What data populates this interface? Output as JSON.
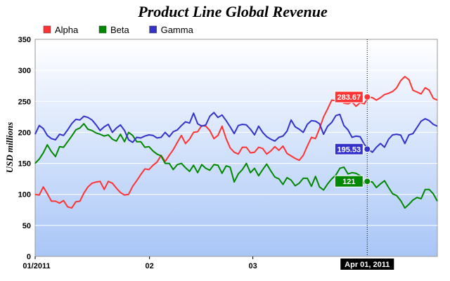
{
  "chart_data": {
    "type": "line",
    "title": "Product Line Global Revenue",
    "ylabel": "USD millions",
    "xlabel": "",
    "ylim": [
      0,
      350
    ],
    "yticks": [
      0,
      50,
      100,
      150,
      200,
      250,
      300,
      350
    ],
    "x_tick_labels": [
      "01/2011",
      "02",
      "03"
    ],
    "x_tick_days": [
      0,
      31,
      59
    ],
    "x_days_total": 109,
    "crosshair": {
      "label": "Apr 01, 2011",
      "day": 90
    },
    "legend_position": "top-left",
    "grid": "horizontal",
    "background_gradient": [
      "#ffffff",
      "#a9c6f7"
    ],
    "series": [
      {
        "name": "Alpha",
        "color": "#ff3333",
        "crosshair_value": "283.67",
        "values": [
          100,
          99,
          112,
          101,
          89,
          89,
          86,
          90,
          80,
          78,
          88,
          89,
          102,
          112,
          118,
          120,
          121,
          108,
          121,
          118,
          110,
          103,
          99,
          100,
          113,
          122,
          132,
          141,
          140,
          147,
          152,
          163,
          153,
          163,
          172,
          184,
          195,
          182,
          189,
          200,
          201,
          211,
          210,
          203,
          190,
          195,
          210,
          190,
          175,
          168,
          165,
          176,
          176,
          167,
          168,
          176,
          174,
          165,
          170,
          177,
          171,
          178,
          166,
          162,
          158,
          155,
          163,
          178,
          192,
          190,
          206,
          225,
          238,
          252,
          251,
          253,
          247,
          246,
          249,
          242,
          248,
          246,
          257,
          256,
          252,
          256,
          261,
          263,
          266,
          272,
          283.67,
          290,
          285,
          268,
          265,
          262,
          272,
          268,
          255,
          252
        ]
      },
      {
        "name": "Beta",
        "color": "#008800",
        "values": [
          150,
          157,
          167,
          180,
          169,
          161,
          177,
          176,
          185,
          194,
          204,
          207,
          214,
          205,
          203,
          199,
          197,
          194,
          196,
          189,
          186,
          197,
          185,
          200,
          195,
          185,
          185,
          176,
          177,
          170,
          165,
          162,
          150,
          150,
          140,
          148,
          150,
          143,
          137,
          147,
          135,
          148,
          142,
          139,
          148,
          147,
          134,
          146,
          144,
          120,
          133,
          140,
          150,
          135,
          142,
          130,
          140,
          149,
          138,
          128,
          125,
          116,
          127,
          123,
          114,
          118,
          126,
          126,
          113,
          129,
          112,
          107,
          117,
          125,
          131,
          142,
          144,
          133,
          135,
          134,
          130,
          118,
          121,
          120,
          111,
          117,
          122,
          111,
          101,
          98,
          89.876,
          78,
          84,
          91,
          95,
          93,
          108,
          108,
          101,
          89
        ]
      },
      {
        "name": "Gamma",
        "color": "#3333cc",
        "crosshair_value": "195.53",
        "values": [
          197,
          211,
          206,
          195,
          190,
          188,
          197,
          195,
          204,
          214,
          221,
          220,
          226,
          224,
          220,
          212,
          203,
          209,
          213,
          200,
          207,
          212,
          203,
          188,
          184,
          192,
          191,
          194,
          196,
          195,
          191,
          192,
          200,
          193,
          201,
          204,
          211,
          217,
          215,
          231,
          214,
          210,
          212,
          226,
          232,
          224,
          228,
          219,
          209,
          198,
          211,
          213,
          212,
          205,
          196,
          210,
          200,
          193,
          189,
          186,
          192,
          194,
          202,
          220,
          209,
          205,
          200,
          213,
          219,
          218,
          214,
          197,
          210,
          216,
          227,
          229,
          211,
          204,
          192,
          194,
          193,
          181,
          173,
          168,
          176,
          182,
          176,
          189,
          196,
          197,
          195.53,
          182,
          196,
          198,
          208,
          218,
          222,
          219,
          213,
          210
        ]
      }
    ]
  }
}
